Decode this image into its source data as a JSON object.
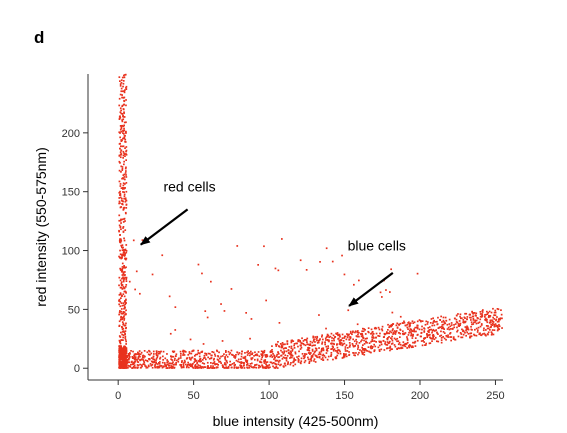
{
  "panel_label": "d",
  "chart_data": {
    "type": "scatter",
    "xlabel": "blue intensity (425-500nm)",
    "ylabel": "red intensity (550-575nm)",
    "xlim": [
      -20,
      255
    ],
    "ylim": [
      -10,
      250
    ],
    "xticks": [
      0,
      50,
      100,
      150,
      200,
      250
    ],
    "yticks": [
      0,
      50,
      100,
      150,
      200
    ],
    "point_color": "#e8321e",
    "grid": false,
    "annotations": [
      {
        "text": "red cells",
        "text_at": [
          30,
          150
        ],
        "arrow_from": [
          46,
          135
        ],
        "arrow_to": [
          15,
          105
        ]
      },
      {
        "text": "blue cells",
        "text_at": [
          152,
          100
        ],
        "arrow_from": [
          182,
          81
        ],
        "arrow_to": [
          153,
          53
        ]
      }
    ],
    "clusters": [
      {
        "name": "red-cells-column",
        "x_range": [
          0,
          5
        ],
        "y_range": [
          0,
          250
        ],
        "count": 500
      },
      {
        "name": "low-cluster",
        "x_range": [
          0,
          5
        ],
        "y_range": [
          0,
          18
        ],
        "count": 300
      },
      {
        "name": "baseline-band",
        "x_range": [
          5,
          100
        ],
        "y_range": [
          0,
          15
        ],
        "count": 600
      },
      {
        "name": "blue-cells-trend",
        "x_range": [
          100,
          255
        ],
        "y_trend": [
          [
            100,
            10
          ],
          [
            250,
            40
          ]
        ],
        "spread": 14,
        "count": 1100
      },
      {
        "name": "sparse-outliers",
        "x_range": [
          5,
          200
        ],
        "y_range": [
          20,
          110
        ],
        "count": 60
      }
    ]
  }
}
